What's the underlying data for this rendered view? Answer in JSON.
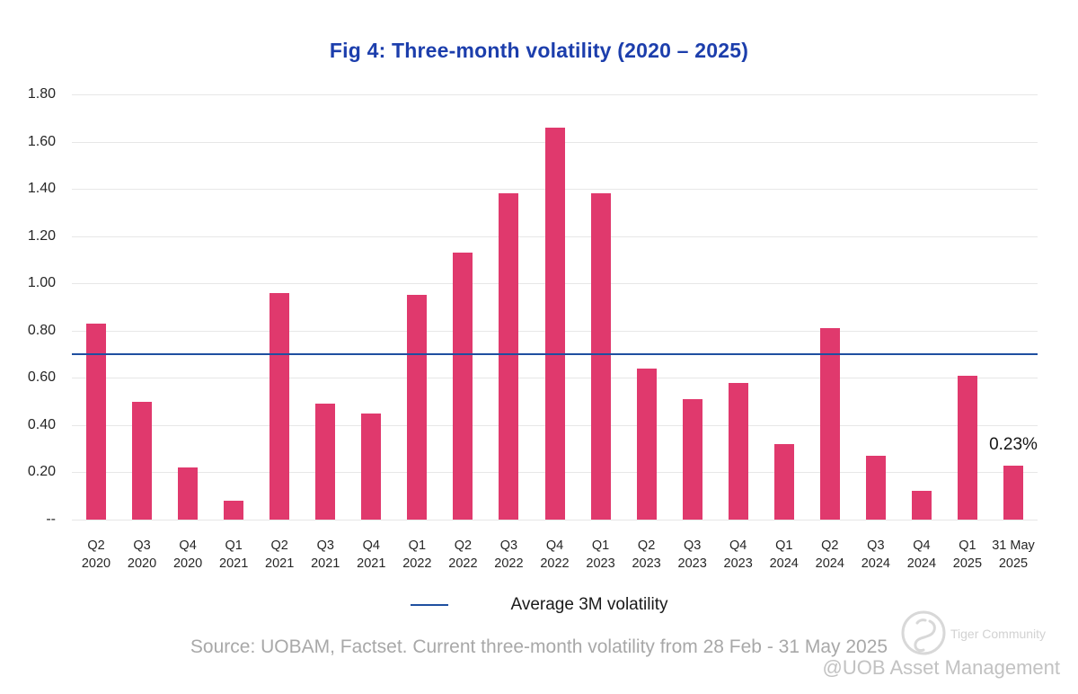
{
  "title": "Fig 4: Three-month volatility (2020 – 2025)",
  "colors": {
    "title": "#1C3EAC",
    "bar": "#E0396D",
    "average_line": "#1F4FA0",
    "gridline": "#E7E7E7",
    "source_text": "#A8A8A8"
  },
  "chart_data": {
    "type": "bar",
    "title": "Fig 4: Three-month volatility (2020 – 2025)",
    "categories": [
      {
        "line1": "Q2",
        "line2": "2020"
      },
      {
        "line1": "Q3",
        "line2": "2020"
      },
      {
        "line1": "Q4",
        "line2": "2020"
      },
      {
        "line1": "Q1",
        "line2": "2021"
      },
      {
        "line1": "Q2",
        "line2": "2021"
      },
      {
        "line1": "Q3",
        "line2": "2021"
      },
      {
        "line1": "Q4",
        "line2": "2021"
      },
      {
        "line1": "Q1",
        "line2": "2022"
      },
      {
        "line1": "Q2",
        "line2": "2022"
      },
      {
        "line1": "Q3",
        "line2": "2022"
      },
      {
        "line1": "Q4",
        "line2": "2022"
      },
      {
        "line1": "Q1",
        "line2": "2023"
      },
      {
        "line1": "Q2",
        "line2": "2023"
      },
      {
        "line1": "Q3",
        "line2": "2023"
      },
      {
        "line1": "Q4",
        "line2": "2023"
      },
      {
        "line1": "Q1",
        "line2": "2024"
      },
      {
        "line1": "Q2",
        "line2": "2024"
      },
      {
        "line1": "Q3",
        "line2": "2024"
      },
      {
        "line1": "Q4",
        "line2": "2024"
      },
      {
        "line1": "Q1",
        "line2": "2025"
      },
      {
        "line1": "31 May",
        "line2": "2025"
      }
    ],
    "values": [
      0.83,
      0.5,
      0.22,
      0.08,
      0.96,
      0.49,
      0.45,
      0.95,
      1.13,
      1.38,
      1.66,
      1.38,
      0.64,
      0.51,
      0.58,
      0.32,
      0.81,
      0.27,
      0.12,
      0.61,
      0.23
    ],
    "bar_color": "#E0396D",
    "ylim": [
      0,
      1.8
    ],
    "y_ticks": [
      {
        "label": "1.80",
        "value": 1.8
      },
      {
        "label": "1.60",
        "value": 1.6
      },
      {
        "label": "1.40",
        "value": 1.4
      },
      {
        "label": "1.20",
        "value": 1.2
      },
      {
        "label": "1.00",
        "value": 1.0
      },
      {
        "label": "0.80",
        "value": 0.8
      },
      {
        "label": "0.60",
        "value": 0.6
      },
      {
        "label": "0.40",
        "value": 0.4
      },
      {
        "label": "0.20",
        "value": 0.2
      },
      {
        "label": "--",
        "value": 0
      }
    ],
    "grid": "horizontal",
    "legend_position": "bottom-center",
    "average_line": {
      "value": 0.7,
      "color": "#1F4FA0",
      "label": "Average 3M volatility"
    },
    "annotation": {
      "text": "0.23%",
      "category_index": 20
    }
  },
  "legend": {
    "label": "Average 3M volatility"
  },
  "source": "Source: UOBAM, Factset. Current three-month volatility from 28 Feb - 31 May 2025",
  "watermark": {
    "community": "Tiger Community",
    "account": "@UOB Asset Management"
  }
}
